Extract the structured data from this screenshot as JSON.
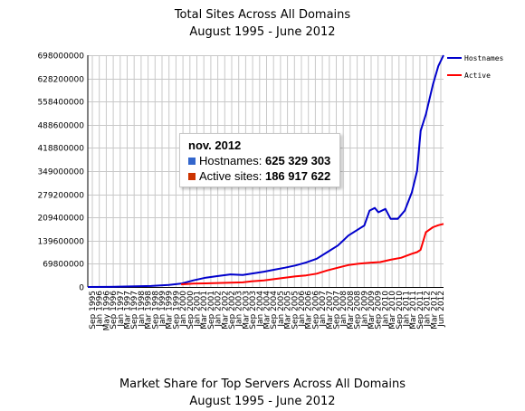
{
  "top_chart": {
    "title": "Total Sites Across All Domains",
    "subtitle": "August 1995 - June 2012"
  },
  "tooltip": {
    "date": "nov. 2012",
    "rows": [
      {
        "label": "Hostnames: ",
        "value": "625 329 303",
        "color": "#3366cc"
      },
      {
        "label": "Active sites: ",
        "value": "186 917 622",
        "color": "#cc3300"
      }
    ]
  },
  "bottom_chart": {
    "title": "Market Share for Top Servers Across All Domains",
    "subtitle": "August 1995 - June 2012"
  },
  "chart_data": {
    "type": "line",
    "title": "Total Sites Across All Domains",
    "subtitle": "August 1995 - June 2012",
    "ylim": [
      0,
      698000000
    ],
    "y_ticks": [
      0,
      69800000,
      139600000,
      209400000,
      279200000,
      349000000,
      418800000,
      488600000,
      558400000,
      628200000,
      698000000
    ],
    "y_tick_labels": [
      "0",
      "69800000",
      "139600000",
      "209400000",
      "279200000",
      "349000000",
      "418800000",
      "488600000",
      "558400000",
      "628200000",
      "698000000"
    ],
    "x_range": [
      "1995-08",
      "2012-06"
    ],
    "x_tick_labels": [
      "Sep 1995",
      "Jan 1996",
      "May 1996",
      "Sep 1996",
      "Jan 1997",
      "Mar 1997",
      "Sep 1997",
      "Jan 1998",
      "Mar 1998",
      "Sep 1998",
      "Jan 1999",
      "Mar 1999",
      "Sep 1999",
      "Jan 2000",
      "Sep 2000",
      "Jan 2001",
      "Mar 2001",
      "Sep 2001",
      "Jan 2002",
      "Mar 2002",
      "Sep 2002",
      "Jan 2003",
      "Mar 2003",
      "Sep 2003",
      "Jan 2004",
      "Mar 2004",
      "Sep 2004",
      "Jan 2005",
      "Mar 2005",
      "Sep 2005",
      "Jan 2006",
      "Mar 2006",
      "Sep 2006",
      "Jan 2007",
      "Mar 2007",
      "Sep 2007",
      "Jan 2008",
      "Mar 2008",
      "Sep 2008",
      "Jan 2009",
      "Mar 2009",
      "Sep 2009",
      "Jan 2010",
      "Mar 2010",
      "Sep 2010",
      "Jan 2011",
      "Mar 2011",
      "Sep 2011",
      "Jan 2012",
      "Mar 2012",
      "Jun 2012"
    ],
    "grid": true,
    "legend_position": "top-right",
    "series": [
      {
        "name": "Hostnames",
        "color": "#0000cc",
        "points": [
          [
            "1995-08",
            20000
          ],
          [
            "1996-08",
            300000
          ],
          [
            "1997-08",
            1500000
          ],
          [
            "1998-08",
            3000000
          ],
          [
            "1999-06",
            6000000
          ],
          [
            "2000-01",
            10000000
          ],
          [
            "2000-08",
            20000000
          ],
          [
            "2001-03",
            28000000
          ],
          [
            "2001-10",
            33000000
          ],
          [
            "2002-05",
            38000000
          ],
          [
            "2002-12",
            36000000
          ],
          [
            "2003-05",
            40000000
          ],
          [
            "2003-12",
            46000000
          ],
          [
            "2004-06",
            52000000
          ],
          [
            "2004-12",
            58000000
          ],
          [
            "2005-06",
            65000000
          ],
          [
            "2005-12",
            74000000
          ],
          [
            "2006-06",
            85000000
          ],
          [
            "2006-12",
            105000000
          ],
          [
            "2007-06",
            125000000
          ],
          [
            "2007-12",
            155000000
          ],
          [
            "2008-06",
            175000000
          ],
          [
            "2008-09",
            185000000
          ],
          [
            "2008-12",
            230000000
          ],
          [
            "2009-03",
            238000000
          ],
          [
            "2009-05",
            225000000
          ],
          [
            "2009-09",
            235000000
          ],
          [
            "2009-12",
            205000000
          ],
          [
            "2010-04",
            205000000
          ],
          [
            "2010-08",
            230000000
          ],
          [
            "2010-12",
            285000000
          ],
          [
            "2011-03",
            350000000
          ],
          [
            "2011-05",
            470000000
          ],
          [
            "2011-08",
            520000000
          ],
          [
            "2011-12",
            610000000
          ],
          [
            "2012-03",
            665000000
          ],
          [
            "2012-06",
            698000000
          ]
        ]
      },
      {
        "name": "Active",
        "color": "#ff0000",
        "points": [
          [
            "2000-01",
            8000000
          ],
          [
            "2000-08",
            10000000
          ],
          [
            "2001-03",
            11000000
          ],
          [
            "2001-10",
            12000000
          ],
          [
            "2002-05",
            13000000
          ],
          [
            "2002-12",
            14000000
          ],
          [
            "2003-05",
            17000000
          ],
          [
            "2003-12",
            20000000
          ],
          [
            "2004-06",
            24000000
          ],
          [
            "2004-12",
            28000000
          ],
          [
            "2005-06",
            32000000
          ],
          [
            "2005-12",
            35000000
          ],
          [
            "2006-06",
            40000000
          ],
          [
            "2006-12",
            50000000
          ],
          [
            "2007-06",
            58000000
          ],
          [
            "2007-12",
            66000000
          ],
          [
            "2008-06",
            70000000
          ],
          [
            "2008-12",
            73000000
          ],
          [
            "2009-06",
            75000000
          ],
          [
            "2009-12",
            82000000
          ],
          [
            "2010-06",
            88000000
          ],
          [
            "2010-12",
            100000000
          ],
          [
            "2011-03",
            105000000
          ],
          [
            "2011-05",
            112000000
          ],
          [
            "2011-08",
            165000000
          ],
          [
            "2011-12",
            180000000
          ],
          [
            "2012-03",
            186000000
          ],
          [
            "2012-06",
            190000000
          ]
        ]
      }
    ]
  }
}
